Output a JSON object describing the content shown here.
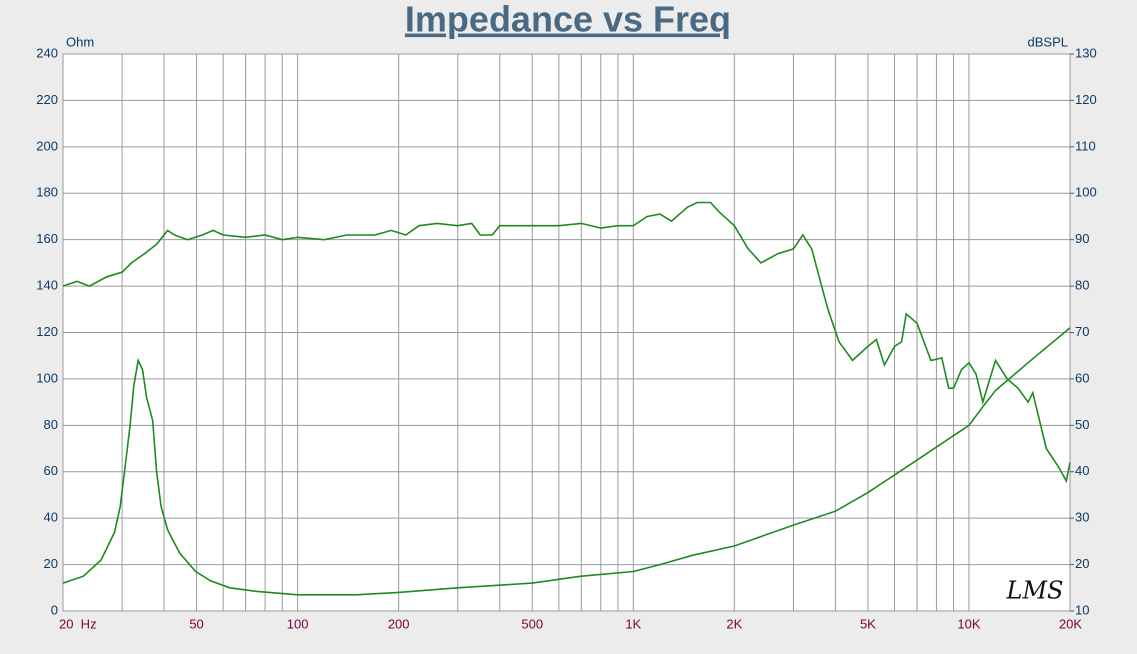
{
  "chart_data": {
    "type": "line",
    "title": "Impedance vs Freq",
    "y_label": "Ohm",
    "y2_label": "dBSPL",
    "logo": "LMS",
    "log_x": true,
    "grid": true,
    "xlim": [
      20,
      20000
    ],
    "xticks": [
      {
        "value": 20,
        "label": "20  Hz"
      },
      50,
      100,
      200,
      500,
      {
        "value": 1000,
        "label": "1K"
      },
      {
        "value": 2000,
        "label": "2K"
      },
      {
        "value": 5000,
        "label": "5K"
      },
      {
        "value": 10000,
        "label": "10K"
      },
      {
        "value": 20000,
        "label": "20K"
      }
    ],
    "xminor": [
      30,
      40,
      60,
      70,
      80,
      90,
      300,
      400,
      600,
      700,
      800,
      900,
      3000,
      4000,
      6000,
      7000,
      8000,
      9000
    ],
    "ylim": [
      0,
      240
    ],
    "yticks": [
      0,
      20,
      40,
      60,
      80,
      100,
      120,
      140,
      160,
      180,
      200,
      220,
      240
    ],
    "y2lim": [
      10,
      130
    ],
    "y2ticks": [
      10,
      20,
      30,
      40,
      50,
      60,
      70,
      80,
      90,
      100,
      110,
      120,
      130
    ],
    "series": [
      {
        "name": "Impedance",
        "color": "#1f8a1f",
        "axis": "y",
        "x": [
          20,
          23,
          26,
          28.5,
          29.6,
          30.5,
          31.7,
          32.5,
          33.5,
          34.5,
          35.5,
          37,
          38,
          39.2,
          41,
          44.5,
          49.7,
          55,
          62.7,
          75,
          100,
          150,
          200,
          300,
          500,
          700,
          1000,
          1200,
          1500,
          2000,
          3000,
          4000,
          5000,
          7000,
          10000,
          11000,
          12000,
          15000,
          20000
        ],
        "values": [
          12,
          15,
          22,
          34,
          45,
          60,
          80,
          97,
          108,
          104,
          92,
          82,
          60,
          45,
          35,
          25,
          17,
          13,
          10,
          8.5,
          7,
          7,
          8,
          10,
          12,
          15,
          17,
          20,
          24,
          28,
          37,
          43,
          51,
          65,
          80,
          88,
          95,
          107,
          122
        ]
      },
      {
        "name": "SPL",
        "color": "#1f8a1f",
        "axis": "y2",
        "x": [
          20,
          22,
          24,
          27,
          30,
          32,
          35,
          38,
          41,
          43,
          47,
          52,
          56,
          60,
          70,
          80,
          90,
          100,
          120,
          140,
          170,
          190,
          210,
          230,
          260,
          300,
          330,
          350,
          380,
          400,
          500,
          600,
          700,
          800,
          900,
          1000,
          1100,
          1200,
          1300,
          1450,
          1550,
          1700,
          1800,
          2000,
          2200,
          2400,
          2700,
          3000,
          3200,
          3400,
          3800,
          4100,
          4500,
          5000,
          5300,
          5600,
          6000,
          6300,
          6500,
          7000,
          7700,
          8300,
          8700,
          9000,
          9500,
          10000,
          10500,
          11000,
          12000,
          13000,
          14000,
          15000,
          15500,
          17000,
          18500,
          19500,
          20000
        ],
        "values": [
          80,
          81,
          80,
          82,
          83,
          85,
          87,
          89,
          92,
          91,
          90,
          91,
          92,
          91,
          90.5,
          91,
          90,
          90.5,
          90,
          91,
          91,
          92,
          91,
          93,
          93.5,
          93,
          93.5,
          91,
          91,
          93,
          93,
          93,
          93.5,
          92.5,
          93,
          93,
          95,
          95.5,
          94,
          97,
          98,
          98,
          96,
          93,
          88,
          85,
          87,
          88,
          91,
          88,
          75,
          68,
          64,
          67,
          68.5,
          63,
          67,
          68,
          74,
          72,
          64,
          64.5,
          58,
          58,
          62,
          63.5,
          61,
          55,
          64,
          60,
          58,
          55,
          57,
          45,
          41,
          38,
          42
        ]
      }
    ]
  }
}
